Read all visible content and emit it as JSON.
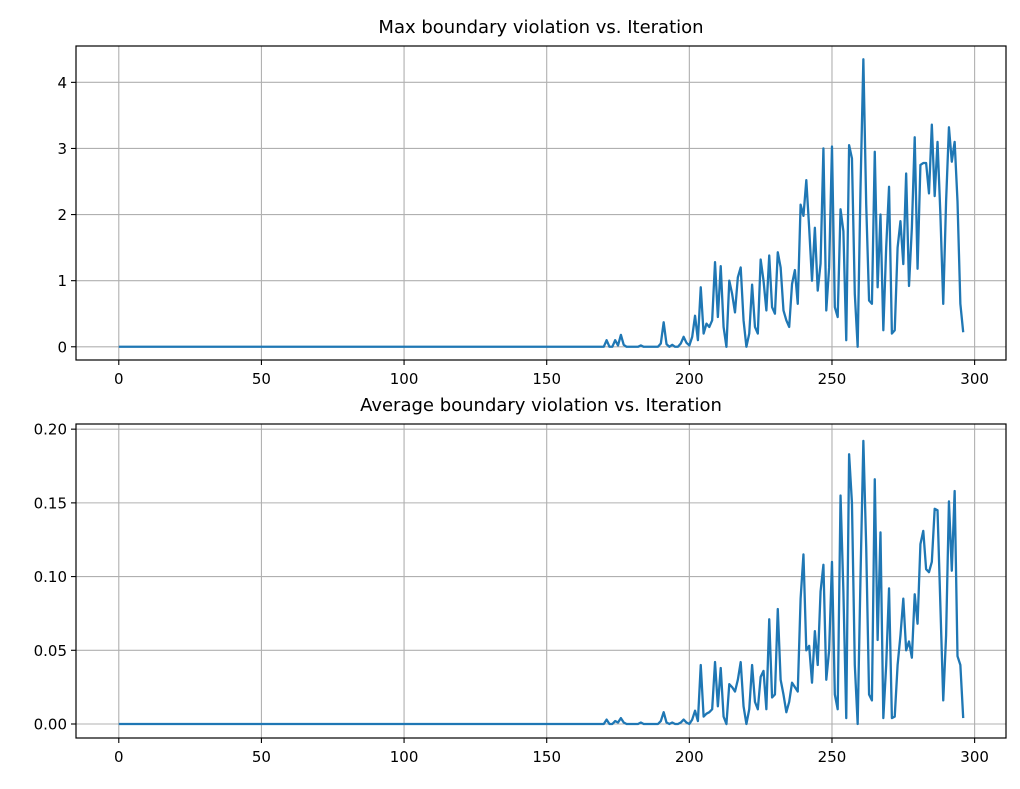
{
  "chart_data": [
    {
      "type": "line",
      "title": "Max boundary violation vs. Iteration",
      "xlabel": "",
      "ylabel": "",
      "xlim": [
        -15,
        311
      ],
      "ylim": [
        -0.2,
        4.55
      ],
      "xticks": [
        0,
        50,
        100,
        150,
        200,
        250,
        300
      ],
      "yticks": [
        0,
        1,
        2,
        3,
        4
      ],
      "ytick_labels": [
        "0",
        "1",
        "2",
        "3",
        "4"
      ],
      "grid": true,
      "line_color": "#1f77b4",
      "series": [
        {
          "x": [
            0,
            170,
            171,
            172,
            173,
            174,
            175,
            176,
            177,
            178,
            179,
            180,
            181,
            182,
            183,
            184,
            185,
            186,
            187,
            188,
            189,
            190,
            191,
            192,
            193,
            194,
            195,
            196,
            197,
            198,
            199,
            200,
            201,
            202,
            203,
            204,
            205,
            206,
            207,
            208,
            209,
            210,
            211,
            212,
            213,
            214,
            215,
            216,
            217,
            218,
            219,
            220,
            221,
            222,
            223,
            224,
            225,
            226,
            227,
            228,
            229,
            230,
            231,
            232,
            233,
            234,
            235,
            236,
            237,
            238,
            239,
            240,
            241,
            242,
            243,
            244,
            245,
            246,
            247,
            248,
            249,
            250,
            251,
            252,
            253,
            254,
            255,
            256,
            257,
            258,
            259,
            260,
            261,
            262,
            263,
            264,
            265,
            266,
            267,
            268,
            269,
            270,
            271,
            272,
            273,
            274,
            275,
            276,
            277,
            278,
            279,
            280,
            281,
            282,
            283,
            284,
            285,
            286,
            287,
            288,
            289,
            290,
            291,
            292,
            293,
            294,
            295,
            296
          ],
          "y": [
            0,
            0,
            0.1,
            0,
            0,
            0.1,
            0.02,
            0.18,
            0.03,
            0,
            0,
            0,
            0,
            0,
            0.02,
            0,
            0,
            0,
            0,
            0,
            0,
            0.05,
            0.37,
            0.04,
            0,
            0.03,
            0,
            0,
            0.05,
            0.15,
            0.06,
            0.02,
            0.15,
            0.47,
            0.1,
            0.9,
            0.2,
            0.35,
            0.3,
            0.4,
            1.28,
            0.45,
            1.22,
            0.3,
            0,
            1.0,
            0.8,
            0.52,
            1.05,
            1.2,
            0.4,
            0,
            0.2,
            0.94,
            0.3,
            0.2,
            1.32,
            1.0,
            0.55,
            1.38,
            0.6,
            0.5,
            1.43,
            1.2,
            0.55,
            0.4,
            0.3,
            0.95,
            1.16,
            0.65,
            2.15,
            1.98,
            2.52,
            1.8,
            1.0,
            1.8,
            0.85,
            1.26,
            3.0,
            0.55,
            1.2,
            3.03,
            0.6,
            0.45,
            2.08,
            1.75,
            0.1,
            3.05,
            2.85,
            0.8,
            0,
            2.4,
            4.35,
            2.15,
            0.7,
            0.65,
            2.95,
            0.9,
            2.0,
            0.25,
            1.5,
            2.42,
            0.2,
            0.25,
            1.5,
            1.9,
            1.25,
            2.62,
            0.92,
            1.8,
            3.17,
            1.18,
            2.75,
            2.78,
            2.78,
            2.32,
            3.36,
            2.28,
            3.1,
            2.0,
            0.65,
            2.2,
            3.32,
            2.8,
            3.1,
            2.2,
            0.65,
            0.22
          ]
        }
      ]
    },
    {
      "type": "line",
      "title": "Average boundary violation vs. Iteration",
      "xlabel": "",
      "ylabel": "",
      "xlim": [
        -15,
        311
      ],
      "ylim": [
        -0.0095,
        0.2035
      ],
      "xticks": [
        0,
        50,
        100,
        150,
        200,
        250,
        300
      ],
      "yticks": [
        0,
        0.05,
        0.1,
        0.15,
        0.2
      ],
      "ytick_labels": [
        "0.00",
        "0.05",
        "0.10",
        "0.15",
        "0.20"
      ],
      "grid": true,
      "line_color": "#1f77b4",
      "series": [
        {
          "x": [
            0,
            170,
            171,
            172,
            173,
            174,
            175,
            176,
            177,
            178,
            179,
            180,
            181,
            182,
            183,
            184,
            185,
            186,
            187,
            188,
            189,
            190,
            191,
            192,
            193,
            194,
            195,
            196,
            197,
            198,
            199,
            200,
            201,
            202,
            203,
            204,
            205,
            206,
            207,
            208,
            209,
            210,
            211,
            212,
            213,
            214,
            215,
            216,
            217,
            218,
            219,
            220,
            221,
            222,
            223,
            224,
            225,
            226,
            227,
            228,
            229,
            230,
            231,
            232,
            233,
            234,
            235,
            236,
            237,
            238,
            239,
            240,
            241,
            242,
            243,
            244,
            245,
            246,
            247,
            248,
            249,
            250,
            251,
            252,
            253,
            254,
            255,
            256,
            257,
            258,
            259,
            260,
            261,
            262,
            263,
            264,
            265,
            266,
            267,
            268,
            269,
            270,
            271,
            272,
            273,
            274,
            275,
            276,
            277,
            278,
            279,
            280,
            281,
            282,
            283,
            284,
            285,
            286,
            287,
            288,
            289,
            290,
            291,
            292,
            293,
            294,
            295,
            296
          ],
          "y": [
            0,
            0,
            0.003,
            0,
            0,
            0.002,
            0.001,
            0.004,
            0.001,
            0,
            0,
            0,
            0,
            0,
            0.001,
            0,
            0,
            0,
            0,
            0,
            0,
            0.002,
            0.008,
            0.001,
            0,
            0.001,
            0,
            0,
            0.001,
            0.003,
            0.001,
            0,
            0.003,
            0.009,
            0.002,
            0.04,
            0.005,
            0.007,
            0.008,
            0.01,
            0.042,
            0.012,
            0.038,
            0.005,
            0,
            0.027,
            0.025,
            0.022,
            0.03,
            0.042,
            0.012,
            0,
            0.01,
            0.04,
            0.015,
            0.01,
            0.032,
            0.036,
            0.01,
            0.071,
            0.018,
            0.02,
            0.078,
            0.03,
            0.02,
            0.008,
            0.015,
            0.028,
            0.025,
            0.022,
            0.085,
            0.115,
            0.05,
            0.053,
            0.028,
            0.063,
            0.04,
            0.09,
            0.108,
            0.03,
            0.05,
            0.11,
            0.02,
            0.01,
            0.155,
            0.09,
            0.004,
            0.183,
            0.15,
            0.04,
            0,
            0.1,
            0.192,
            0.12,
            0.02,
            0.016,
            0.166,
            0.057,
            0.13,
            0.004,
            0.04,
            0.092,
            0.004,
            0.005,
            0.04,
            0.06,
            0.085,
            0.05,
            0.056,
            0.045,
            0.088,
            0.068,
            0.122,
            0.131,
            0.105,
            0.103,
            0.11,
            0.146,
            0.145,
            0.08,
            0.016,
            0.06,
            0.151,
            0.104,
            0.158,
            0.046,
            0.04,
            0.004
          ]
        }
      ]
    }
  ]
}
